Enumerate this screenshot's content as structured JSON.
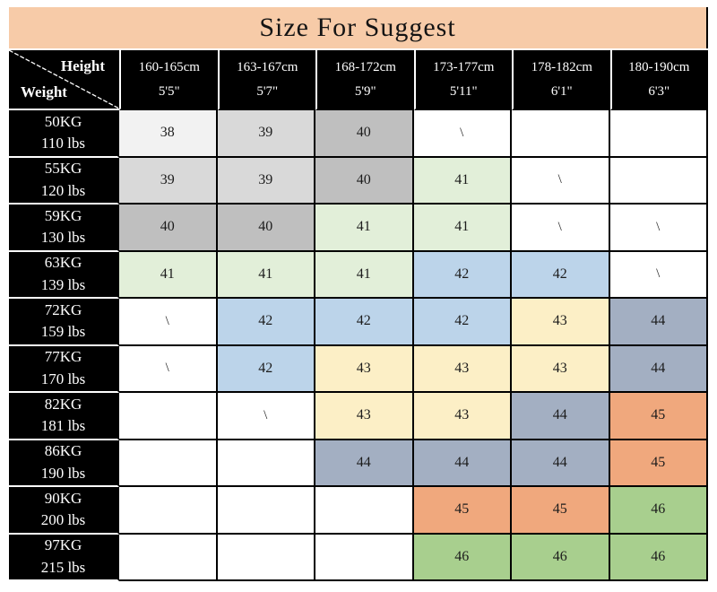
{
  "title": "Size For Suggest",
  "corner": {
    "height_label": "Height",
    "weight_label": "Weight"
  },
  "columns": [
    {
      "range": "160-165cm",
      "feet": "5'5\""
    },
    {
      "range": "163-167cm",
      "feet": "5'7\""
    },
    {
      "range": "168-172cm",
      "feet": "5'9\""
    },
    {
      "range": "173-177cm",
      "feet": "5'11\""
    },
    {
      "range": "178-182cm",
      "feet": "6'1\""
    },
    {
      "range": "180-190cm",
      "feet": "6'3\""
    }
  ],
  "rows": [
    {
      "kg": "50KG",
      "lbs": "110 lbs",
      "cells": [
        {
          "v": "38",
          "bg": "gray1"
        },
        {
          "v": "39",
          "bg": "gray2"
        },
        {
          "v": "40",
          "bg": "gray3"
        },
        {
          "v": "\\",
          "bg": "white"
        },
        {
          "v": "",
          "bg": "white"
        },
        {
          "v": "",
          "bg": "white"
        }
      ]
    },
    {
      "kg": "55KG",
      "lbs": "120 lbs",
      "cells": [
        {
          "v": "39",
          "bg": "gray2"
        },
        {
          "v": "39",
          "bg": "gray2"
        },
        {
          "v": "40",
          "bg": "gray3"
        },
        {
          "v": "41",
          "bg": "greenLight"
        },
        {
          "v": "\\",
          "bg": "white"
        },
        {
          "v": "",
          "bg": "white"
        }
      ]
    },
    {
      "kg": "59KG",
      "lbs": "130 lbs",
      "cells": [
        {
          "v": "40",
          "bg": "gray3"
        },
        {
          "v": "40",
          "bg": "gray3"
        },
        {
          "v": "41",
          "bg": "greenLight"
        },
        {
          "v": "41",
          "bg": "greenLight"
        },
        {
          "v": "\\",
          "bg": "white"
        },
        {
          "v": "\\",
          "bg": "white"
        }
      ]
    },
    {
      "kg": "63KG",
      "lbs": "139 lbs",
      "cells": [
        {
          "v": "41",
          "bg": "greenLight"
        },
        {
          "v": "41",
          "bg": "greenLight"
        },
        {
          "v": "41",
          "bg": "greenLight"
        },
        {
          "v": "42",
          "bg": "blue"
        },
        {
          "v": "42",
          "bg": "blue"
        },
        {
          "v": "\\",
          "bg": "white"
        }
      ]
    },
    {
      "kg": "72KG",
      "lbs": "159 lbs",
      "cells": [
        {
          "v": "\\",
          "bg": "white"
        },
        {
          "v": "42",
          "bg": "blue"
        },
        {
          "v": "42",
          "bg": "blue"
        },
        {
          "v": "42",
          "bg": "blue"
        },
        {
          "v": "43",
          "bg": "yellow"
        },
        {
          "v": "44",
          "bg": "blueGray"
        }
      ]
    },
    {
      "kg": "77KG",
      "lbs": "170 lbs",
      "cells": [
        {
          "v": "\\",
          "bg": "white"
        },
        {
          "v": "42",
          "bg": "blue"
        },
        {
          "v": "43",
          "bg": "yellow"
        },
        {
          "v": "43",
          "bg": "yellow"
        },
        {
          "v": "43",
          "bg": "yellow"
        },
        {
          "v": "44",
          "bg": "blueGray"
        }
      ]
    },
    {
      "kg": "82KG",
      "lbs": "181 lbs",
      "cells": [
        {
          "v": "",
          "bg": "white"
        },
        {
          "v": "\\",
          "bg": "white"
        },
        {
          "v": "43",
          "bg": "yellow"
        },
        {
          "v": "43",
          "bg": "yellow"
        },
        {
          "v": "44",
          "bg": "blueGray"
        },
        {
          "v": "45",
          "bg": "orange"
        }
      ]
    },
    {
      "kg": "86KG",
      "lbs": "190 lbs",
      "cells": [
        {
          "v": "",
          "bg": "white"
        },
        {
          "v": "",
          "bg": "white"
        },
        {
          "v": "44",
          "bg": "blueGray"
        },
        {
          "v": "44",
          "bg": "blueGray"
        },
        {
          "v": "44",
          "bg": "blueGray"
        },
        {
          "v": "45",
          "bg": "orange"
        }
      ]
    },
    {
      "kg": "90KG",
      "lbs": "200 lbs",
      "cells": [
        {
          "v": "",
          "bg": "white"
        },
        {
          "v": "",
          "bg": "white"
        },
        {
          "v": "",
          "bg": "white"
        },
        {
          "v": "45",
          "bg": "orange"
        },
        {
          "v": "45",
          "bg": "orange"
        },
        {
          "v": "46",
          "bg": "green"
        }
      ]
    },
    {
      "kg": "97KG",
      "lbs": "215 lbs",
      "cells": [
        {
          "v": "",
          "bg": "white"
        },
        {
          "v": "",
          "bg": "white"
        },
        {
          "v": "",
          "bg": "white"
        },
        {
          "v": "46",
          "bg": "green"
        },
        {
          "v": "46",
          "bg": "green"
        },
        {
          "v": "46",
          "bg": "green"
        }
      ]
    }
  ],
  "palette": {
    "title_bg": "#F7CBA8",
    "header_bg": "#000000",
    "header_text": "#FFFFFF",
    "grid_line": "#000000",
    "gray1": "#F2F2F2",
    "gray2": "#D9D9D9",
    "gray3": "#BFBFBF",
    "greenLight": "#E2EFD9",
    "blue": "#BCD4EA",
    "yellow": "#FCEFC6",
    "blueGray": "#A3AFC2",
    "orange": "#F0A87D",
    "green": "#A8CF8E",
    "white": "#FFFFFF"
  },
  "chart_data": {
    "type": "table",
    "title": "Size For Suggest",
    "column_axis_label": "Height",
    "row_axis_label": "Weight",
    "columns": [
      "160-165cm 5'5\"",
      "163-167cm 5'7\"",
      "168-172cm 5'9\"",
      "173-177cm 5'11\"",
      "178-182cm 6'1\"",
      "180-190cm 6'3\""
    ],
    "rows": [
      "50KG 110 lbs",
      "55KG 120 lbs",
      "59KG 130 lbs",
      "63KG 139 lbs",
      "72KG 159 lbs",
      "77KG 170 lbs",
      "82KG 181 lbs",
      "86KG 190 lbs",
      "90KG 200 lbs",
      "97KG 215 lbs"
    ],
    "values": [
      [
        "38",
        "39",
        "40",
        "\\",
        "",
        ""
      ],
      [
        "39",
        "39",
        "40",
        "41",
        "\\",
        ""
      ],
      [
        "40",
        "40",
        "41",
        "41",
        "\\",
        "\\"
      ],
      [
        "41",
        "41",
        "41",
        "42",
        "42",
        "\\"
      ],
      [
        "\\",
        "42",
        "42",
        "42",
        "43",
        "44"
      ],
      [
        "\\",
        "42",
        "43",
        "43",
        "43",
        "44"
      ],
      [
        "",
        "\\",
        "43",
        "43",
        "44",
        "45"
      ],
      [
        "",
        "",
        "44",
        "44",
        "44",
        "45"
      ],
      [
        "",
        "",
        "",
        "45",
        "45",
        "46"
      ],
      [
        "",
        "",
        "",
        "46",
        "46",
        "46"
      ]
    ]
  }
}
